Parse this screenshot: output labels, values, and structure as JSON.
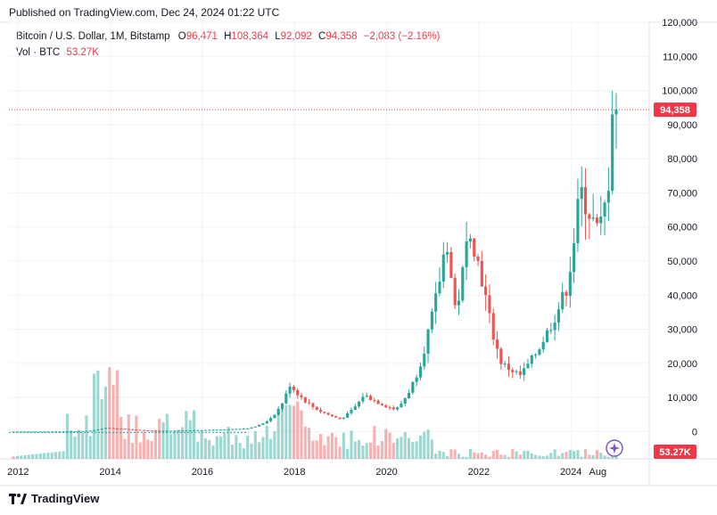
{
  "header": {
    "published": "Published on TradingView.com, Dec 24, 2024 01:22 UTC"
  },
  "legend": {
    "symbol": "Bitcoin / U.S. Dollar, 1M, Bitstamp",
    "o_label": "O",
    "o": "96,471",
    "h_label": "H",
    "h": "108,364",
    "l_label": "L",
    "l": "92,092",
    "c_label": "C",
    "c": "94,358",
    "change": "−2,083 (−2.16%)",
    "vol_label": "Vol · BTC",
    "vol": "53.27K"
  },
  "footer": {
    "brand": "TradingView"
  },
  "colors": {
    "up": "#26a69a",
    "down": "#ef5350",
    "price_line": "#f23645"
  },
  "chart_data": {
    "type": "candlestick",
    "price_axis": {
      "ticks": [
        0,
        10000,
        20000,
        30000,
        40000,
        50000,
        60000,
        70000,
        80000,
        90000,
        100000,
        110000,
        120000
      ],
      "labels": [
        "0",
        "10,000",
        "20,000",
        "30,000",
        "40,000",
        "50,000",
        "60,000",
        "70,000",
        "80,000",
        "90,000",
        "100,000",
        "110,000",
        "120,000"
      ],
      "range": [
        -8000,
        120000
      ]
    },
    "time_axis": {
      "ticks": [
        2012,
        2014,
        2016,
        2018,
        2020,
        2022,
        2024,
        2024.583
      ],
      "labels": [
        "2012",
        "2014",
        "2016",
        "2018",
        "2020",
        "2022",
        "2024",
        "Aug"
      ],
      "range": [
        2011.8,
        2025.7
      ]
    },
    "last_price": {
      "value": 94358,
      "label": "94,358"
    },
    "last_volume": {
      "label": "53.27K"
    },
    "candles_sampled": [
      {
        "t": 2011.9,
        "c": 5
      },
      {
        "t": 2013.3,
        "c": 100
      },
      {
        "t": 2013.9,
        "c": 1100
      },
      {
        "t": 2014.5,
        "c": 600
      },
      {
        "t": 2015.0,
        "c": 230
      },
      {
        "t": 2016.0,
        "c": 430
      },
      {
        "t": 2017.0,
        "c": 970
      },
      {
        "t": 2017.9,
        "c": 13800
      },
      {
        "t": 2018.5,
        "c": 6400
      },
      {
        "t": 2019.0,
        "c": 3700
      },
      {
        "t": 2019.5,
        "c": 10800
      },
      {
        "t": 2020.2,
        "c": 6400
      },
      {
        "t": 2020.9,
        "c": 29000
      },
      {
        "t": 2021.3,
        "c": 57700
      },
      {
        "t": 2021.5,
        "c": 35000
      },
      {
        "t": 2021.8,
        "c": 61300
      },
      {
        "t": 2022.1,
        "c": 43000
      },
      {
        "t": 2022.5,
        "c": 19800
      },
      {
        "t": 2022.9,
        "c": 16500
      },
      {
        "t": 2023.4,
        "c": 27000
      },
      {
        "t": 2023.9,
        "c": 42000
      },
      {
        "t": 2024.2,
        "c": 71000
      },
      {
        "t": 2024.6,
        "c": 58000
      },
      {
        "t": 2024.8,
        "c": 70000
      },
      {
        "t": 2024.9,
        "c": 96400
      },
      {
        "t": 2025.0,
        "c": 94358
      }
    ]
  }
}
